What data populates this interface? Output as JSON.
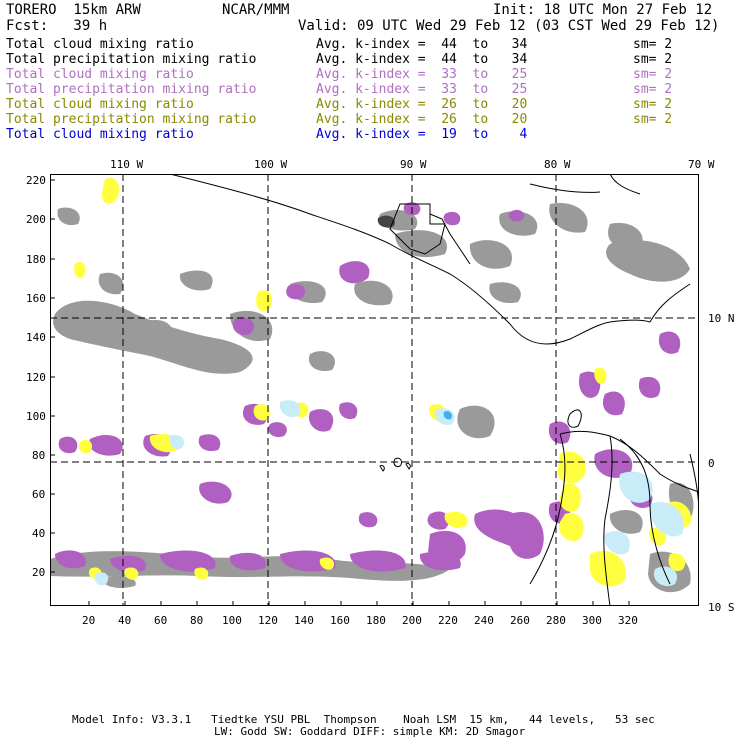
{
  "header": {
    "model": "TORERO  15km ARW",
    "center": "NCAR/MMM",
    "init": "Init: 18 UTC Mon 27 Feb 12",
    "forecast": "Fcst:   39 h",
    "valid": "Valid: 09 UTC Wed 29 Feb 12 (03 CST Wed 29 Feb 12)"
  },
  "legend": [
    {
      "field": "Total cloud mixing ratio",
      "kindex": "Avg. k-index =  44  to   34",
      "sm": "sm= 2",
      "color": "#000000"
    },
    {
      "field": "Total precipitation mixing ratio",
      "kindex": "Avg. k-index =  44  to   34",
      "sm": "sm= 2",
      "color": "#000000"
    },
    {
      "field": "Total cloud mixing ratio",
      "kindex": "Avg. k-index =  33  to   25",
      "sm": "sm= 2",
      "color": "#b070c0"
    },
    {
      "field": "Total precipitation mixing ratio",
      "kindex": "Avg. k-index =  33  to   25",
      "sm": "sm= 2",
      "color": "#b070c0"
    },
    {
      "field": "Total cloud mixing ratio",
      "kindex": "Avg. k-index =  26  to   20",
      "sm": "sm= 2",
      "color": "#8a8a00"
    },
    {
      "field": "Total precipitation mixing ratio",
      "kindex": "Avg. k-index =  26  to   20",
      "sm": "sm= 2",
      "color": "#8a8a00"
    },
    {
      "field": "Total cloud mixing ratio",
      "kindex": "Avg. k-index =  19  to    4",
      "sm": "",
      "color": "#0000d0"
    }
  ],
  "map": {
    "top_longitudes": [
      "110 W",
      "100 W",
      "90 W",
      "80 W",
      "70 W"
    ],
    "right_latitudes": [
      "10 N",
      "0",
      "10 S"
    ],
    "y_ticks": [
      "220",
      "200",
      "180",
      "160",
      "140",
      "120",
      "100",
      "80",
      "60",
      "40",
      "20"
    ],
    "x_ticks": [
      "20",
      "40",
      "60",
      "80",
      "100",
      "120",
      "140",
      "160",
      "180",
      "200",
      "220",
      "240",
      "260",
      "280",
      "300",
      "320"
    ],
    "colors": {
      "gray_cloud": "#9a9a9a",
      "dark_cloud": "#444444",
      "purple": "#b060c0",
      "yellow": "#ffff40",
      "lightblue": "#c8ecf8",
      "blue": "#40b0f0",
      "coast": "#000000"
    }
  },
  "footer": {
    "line1": "Model Info: V3.3.1   Tiedtke YSU PBL  Thompson    Noah LSM  15 km,   44 levels,   53 sec",
    "line2": "LW: Godd SW: Goddard DIFF: simple KM: 2D Smagor"
  }
}
